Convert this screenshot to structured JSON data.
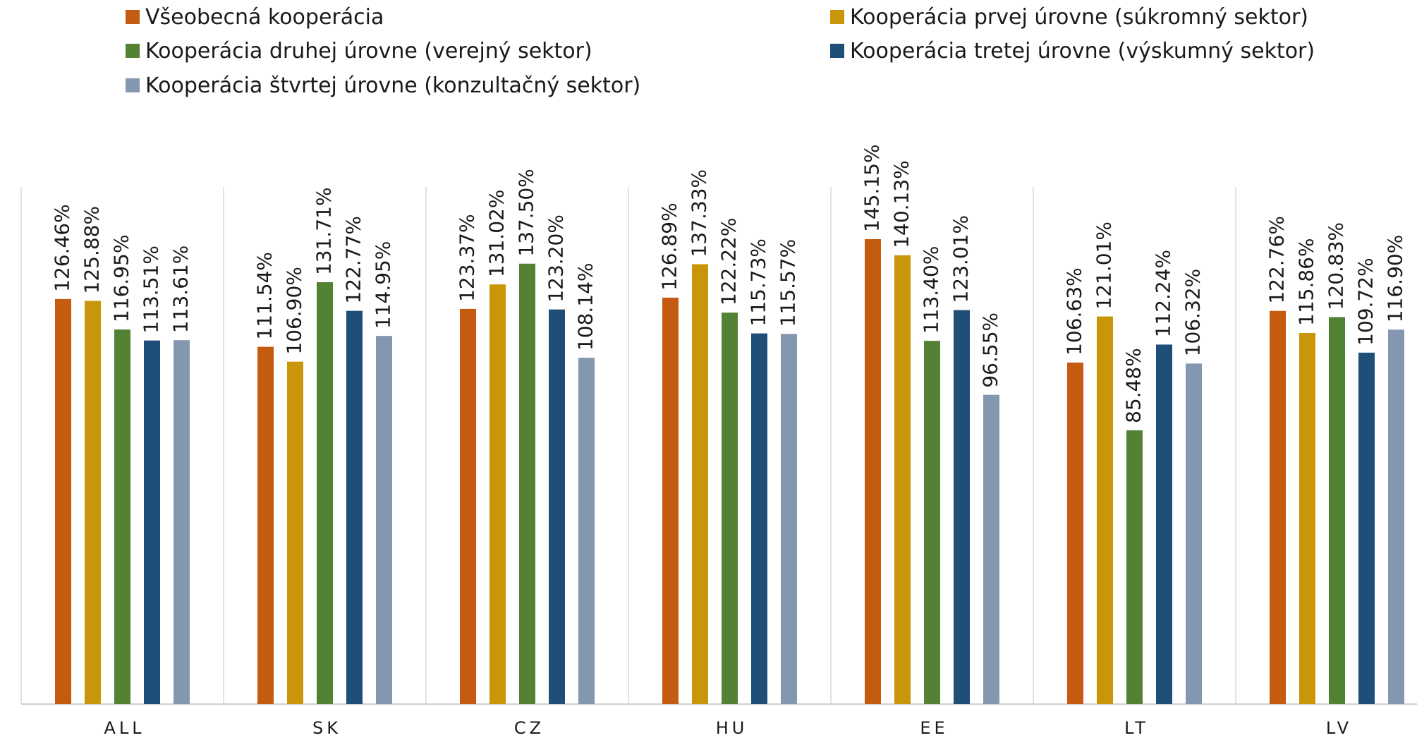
{
  "chart_data": {
    "type": "bar",
    "title": "",
    "xlabel": "",
    "ylabel": "",
    "categories": [
      "ALL",
      "SK",
      "CZ",
      "HU",
      "EE",
      "LT",
      "LV"
    ],
    "series": [
      {
        "name": "Všeobecná kooperácia",
        "color": "#C55A11",
        "values": [
          126.46,
          111.54,
          123.37,
          126.89,
          145.15,
          106.63,
          122.76
        ],
        "labels": [
          "126.46%",
          "111.54%",
          "123.37%",
          "126.89%",
          "145.15%",
          "106.63%",
          "122.76%"
        ]
      },
      {
        "name": "Kooperácia prvej úrovne (súkromný sektor)",
        "color": "#C9960A",
        "values": [
          125.88,
          106.9,
          131.02,
          137.33,
          140.13,
          121.01,
          115.86
        ],
        "labels": [
          "125.88%",
          "106.90%",
          "131.02%",
          "137.33%",
          "140.13%",
          "121.01%",
          "115.86%"
        ]
      },
      {
        "name": "Kooperácia druhej úrovne (verejný sektor)",
        "color": "#548235",
        "values": [
          116.95,
          131.71,
          137.5,
          122.22,
          113.4,
          85.48,
          120.83
        ],
        "labels": [
          "116.95%",
          "131.71%",
          "137.50%",
          "122.22%",
          "113.40%",
          "85.48%",
          "120.83%"
        ]
      },
      {
        "name": "Kooperácia tretej úrovne (výskumný sektor)",
        "color": "#1F4E79",
        "values": [
          113.51,
          122.77,
          123.2,
          115.73,
          123.01,
          112.24,
          109.72
        ],
        "labels": [
          "113.51%",
          "122.77%",
          "123.20%",
          "115.73%",
          "123.01%",
          "112.24%",
          "109.72%"
        ]
      },
      {
        "name": "Kooperácia štvrtej úrovne (konzultačný sektor)",
        "color": "#8497B0",
        "values": [
          113.61,
          114.95,
          108.14,
          115.57,
          96.55,
          106.32,
          116.9
        ],
        "labels": [
          "113.61%",
          "114.95%",
          "108.14%",
          "115.57%",
          "96.55%",
          "106.32%",
          "116.90%"
        ]
      }
    ],
    "ylim": [
      0,
      145.15
    ],
    "grid": false,
    "legend": "top",
    "category_separators": true
  }
}
